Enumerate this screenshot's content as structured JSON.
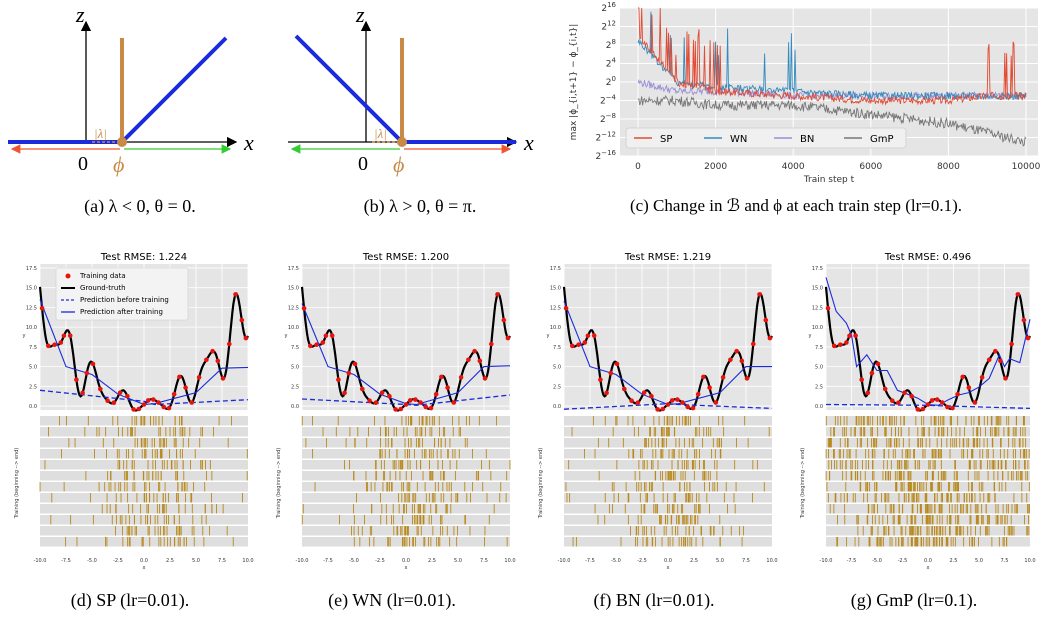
{
  "top": {
    "a": {
      "caption": "(a)  λ < 0, θ = 0.",
      "axis_x": "x",
      "axis_z": "z",
      "origin": "0",
      "phi": "ϕ",
      "lambda": "|λ|"
    },
    "b": {
      "caption": "(b)  λ > 0, θ = π.",
      "axis_x": "x",
      "axis_z": "z",
      "origin": "0",
      "phi": "ϕ",
      "lambda": "|λ|"
    },
    "c": {
      "caption": "(c) Change in ℬ and ϕ at each train step (lr=0.1)."
    }
  },
  "bottom": {
    "captions": [
      "(d)  SP (lr=0.01).",
      "(e)  WN (lr=0.01).",
      "(f)  BN (lr=0.01).",
      "(g)  GmP (lr=0.1)."
    ],
    "titles": [
      "Test RMSE: 1.224",
      "Test RMSE: 1.200",
      "Test RMSE: 1.219",
      "Test RMSE: 0.496"
    ],
    "ylabel": "y",
    "xlabel": "x",
    "hist_ylabel": "Training (beginning --> end)",
    "legend": [
      "Training data",
      "Ground-truth",
      "Prediction before training",
      "Prediction after training"
    ]
  },
  "chart_data": [
    {
      "type": "line",
      "title": "",
      "xlabel": "Train step t",
      "ylabel": "max |ϕ_{i,t+1} − ϕ_{i,t}|",
      "xlim": [
        0,
        10000
      ],
      "ylim_log2": [
        -16,
        16
      ],
      "xticks": [
        "0",
        "2000",
        "4000",
        "6000",
        "8000",
        "10000"
      ],
      "yticks": [
        "2^16",
        "2^12",
        "2^8",
        "2^4",
        "2^0",
        "2^-4",
        "2^-8",
        "2^-12",
        "2^-16"
      ],
      "legend_position": "bottom-left",
      "series": [
        {
          "name": "SP",
          "color": "#e24a33",
          "x": [
            0,
            1000,
            2000,
            4000,
            6000,
            8000,
            9000,
            10000
          ],
          "log2_values": [
            10,
            0,
            -2,
            -3,
            -4,
            -4,
            -3,
            -3
          ]
        },
        {
          "name": "WN",
          "color": "#348abd",
          "x": [
            0,
            1000,
            2000,
            4000,
            6000,
            8000,
            9000,
            10000
          ],
          "log2_values": [
            9,
            0,
            -1,
            -2,
            -3,
            -3,
            -3,
            -3
          ]
        },
        {
          "name": "BN",
          "color": "#988ed5",
          "x": [
            0,
            1000,
            2000,
            4000,
            6000,
            8000,
            9000,
            10000
          ],
          "log2_values": [
            0,
            -2,
            -2,
            -3,
            -3,
            -3,
            -3,
            -3
          ]
        },
        {
          "name": "GmP",
          "color": "#777777",
          "x": [
            0,
            1000,
            2000,
            4000,
            6000,
            8000,
            9000,
            10000
          ],
          "log2_values": [
            -4,
            -4,
            -5,
            -5,
            -7,
            -9,
            -11,
            -13
          ]
        }
      ],
      "grid": true
    },
    {
      "type": "line",
      "title": "Test RMSE: 1.224",
      "xlim": [
        -10,
        10
      ],
      "ylim": [
        0,
        17.5
      ],
      "xticks": [
        "-10.0",
        "-7.5",
        "-5.0",
        "-2.5",
        "0.0",
        "2.5",
        "5.0",
        "7.5",
        "10.0"
      ],
      "yticks": [
        "0.0",
        "2.5",
        "5.0",
        "7.5",
        "10.0",
        "12.5",
        "15.0",
        "17.5"
      ],
      "series": [
        {
          "name": "Prediction before training",
          "x": [
            -10,
            0,
            1,
            10
          ],
          "values": [
            2.0,
            0.6,
            0.2,
            0.8
          ]
        },
        {
          "name": "Prediction after training",
          "x": [
            -10,
            -7.5,
            -5,
            -2.5,
            0,
            1,
            5,
            7.5,
            10
          ],
          "values": [
            13.5,
            5,
            4,
            1.5,
            0.2,
            0.3,
            1.7,
            4.8,
            4.9
          ]
        }
      ]
    },
    {
      "type": "line",
      "title": "Test RMSE: 1.200",
      "xlim": [
        -10,
        10
      ],
      "ylim": [
        0,
        17.5
      ],
      "xticks": [
        "-10.0",
        "-7.5",
        "-5.0",
        "-2.5",
        "0.0",
        "2.5",
        "5.0",
        "7.5",
        "10.0"
      ],
      "yticks": [
        "0.0",
        "2.5",
        "5.0",
        "7.5",
        "10.0",
        "12.5",
        "15.0",
        "17.5"
      ],
      "series": [
        {
          "name": "Prediction before training",
          "x": [
            -10,
            0,
            1,
            10
          ],
          "values": [
            0.9,
            0.2,
            0.1,
            1.4
          ]
        },
        {
          "name": "Prediction after training",
          "x": [
            -10,
            -7.5,
            -5,
            -2.5,
            0,
            1,
            5,
            7.5,
            10
          ],
          "values": [
            13.0,
            5,
            4,
            1.5,
            0.3,
            0.2,
            1.7,
            5.0,
            5.1
          ]
        }
      ]
    },
    {
      "type": "line",
      "title": "Test RMSE: 1.219",
      "xlim": [
        -10,
        10
      ],
      "ylim": [
        0,
        17.5
      ],
      "xticks": [
        "-10.0",
        "-7.5",
        "-5.0",
        "-2.5",
        "0.0",
        "2.5",
        "5.0",
        "7.5",
        "10.0"
      ],
      "yticks": [
        "0.0",
        "2.5",
        "5.0",
        "7.5",
        "10.0",
        "12.5",
        "15.0",
        "17.5"
      ],
      "series": [
        {
          "name": "Prediction before training",
          "x": [
            -10,
            0,
            1,
            10
          ],
          "values": [
            -0.4,
            0.3,
            0.2,
            -0.3
          ]
        },
        {
          "name": "Prediction after training",
          "x": [
            -10,
            -7.5,
            -5,
            -2.5,
            0,
            1,
            5,
            7.5,
            10
          ],
          "values": [
            13.3,
            5,
            4,
            1.5,
            0.2,
            0.3,
            1.7,
            5.0,
            5.0
          ]
        }
      ]
    },
    {
      "type": "line",
      "title": "Test RMSE: 0.496",
      "xlim": [
        -10,
        10
      ],
      "ylim": [
        0,
        17.5
      ],
      "xticks": [
        "-10.0",
        "-7.5",
        "-5.0",
        "-2.5",
        "0.0",
        "2.5",
        "5.0",
        "7.5",
        "10.0"
      ],
      "yticks": [
        "0.0",
        "2.5",
        "5.0",
        "7.5",
        "10.0",
        "12.5",
        "15.0",
        "17.5"
      ],
      "series": [
        {
          "name": "Prediction before training",
          "x": [
            -10,
            0,
            1,
            10
          ],
          "values": [
            0.2,
            0.1,
            0.05,
            -0.3
          ]
        },
        {
          "name": "Prediction after training",
          "x": [
            -10,
            -9,
            -8,
            -7.5,
            -7,
            -6,
            -5,
            -4,
            -3,
            -2,
            -1,
            0,
            1,
            2,
            3,
            4,
            5,
            6,
            7,
            7.5,
            8,
            9,
            10
          ],
          "values": [
            16.3,
            12,
            10.5,
            9,
            5,
            6.5,
            4.5,
            4.5,
            2,
            1.5,
            1,
            0.2,
            0.1,
            0.8,
            1.4,
            1.7,
            2.4,
            3.5,
            6.5,
            5,
            6,
            5.5,
            11
          ]
        }
      ]
    }
  ]
}
